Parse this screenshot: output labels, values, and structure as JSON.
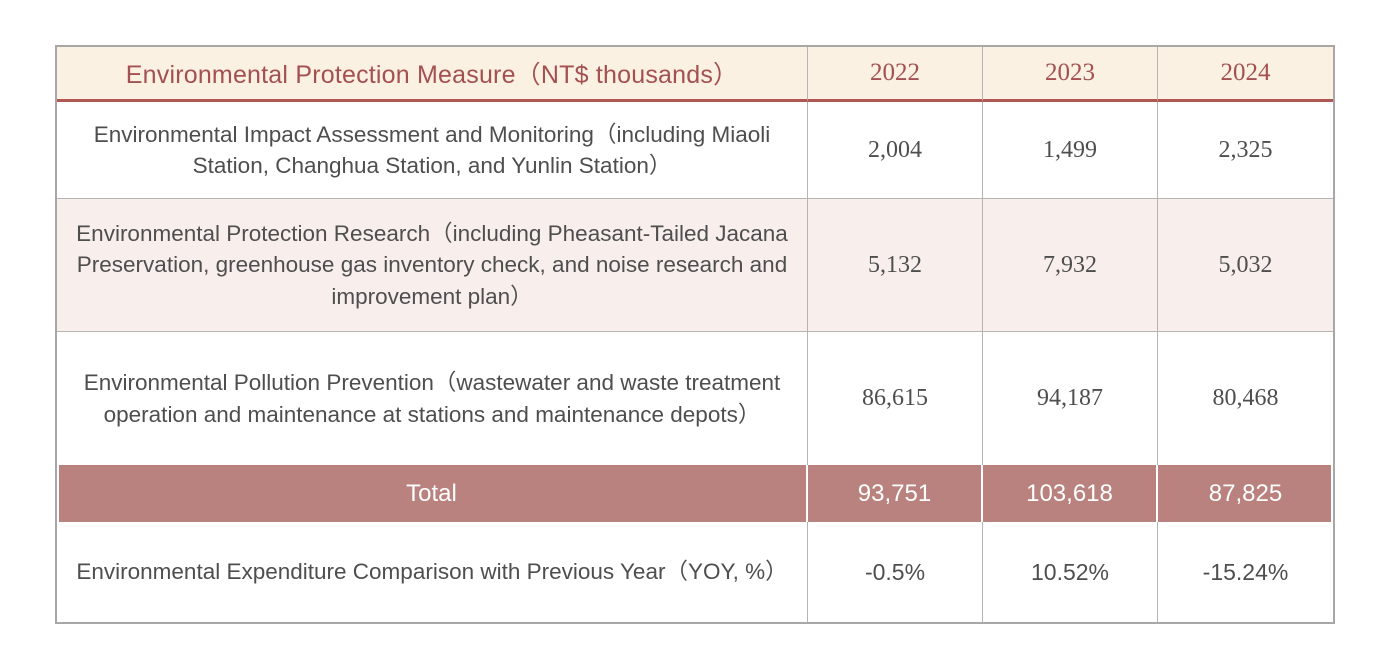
{
  "colors": {
    "header_bg": "#fbf1e2",
    "header_text": "#a35050",
    "header_underline": "#b25653",
    "row_alt_bg": "#f8efec",
    "total_bg": "#b9827e",
    "total_text": "#ffffff",
    "body_text": "#4e4e4e",
    "border_outer": "#a9a7a5",
    "border_inner": "#b7b5b3"
  },
  "table": {
    "header": {
      "measure_label": "Environmental Protection Measure（NT$ thousands）",
      "years": [
        "2022",
        "2023",
        "2024"
      ]
    },
    "rows": [
      {
        "label": "Environmental Impact Assessment and Monitoring（including Miaoli Station, Changhua Station, and Yunlin Station）",
        "values": [
          "2,004",
          "1,499",
          "2,325"
        ]
      },
      {
        "label": "Environmental Protection Research（including Pheasant-Tailed Jacana Preservation, greenhouse gas inventory check, and noise research and improvement plan）",
        "values": [
          "5,132",
          "7,932",
          "5,032"
        ]
      },
      {
        "label": "Environmental Pollution Prevention（wastewater and waste treatment operation and maintenance at stations and maintenance depots）",
        "values": [
          "86,615",
          "94,187",
          "80,468"
        ]
      }
    ],
    "total_row": {
      "label": "Total",
      "values": [
        "93,751",
        "103,618",
        "87,825"
      ]
    },
    "yoy_row": {
      "label": "Environmental Expenditure Comparison with Previous Year（YOY, %）",
      "values": [
        "-0.5%",
        "10.52%",
        "-15.24%"
      ]
    }
  },
  "chart_data": {
    "type": "table",
    "title": "Environmental Protection Measure（NT$ thousands）",
    "columns": [
      "Environmental Protection Measure（NT$ thousands）",
      "2022",
      "2023",
      "2024"
    ],
    "rows": [
      [
        "Environmental Impact Assessment and Monitoring（including Miaoli Station, Changhua Station, and Yunlin Station）",
        2004,
        1499,
        2325
      ],
      [
        "Environmental Protection Research（including Pheasant-Tailed Jacana Preservation, greenhouse gas inventory check, and noise research and improvement plan）",
        5132,
        7932,
        5032
      ],
      [
        "Environmental Pollution Prevention（wastewater and waste treatment operation and maintenance at stations and maintenance depots）",
        86615,
        94187,
        80468
      ],
      [
        "Total",
        93751,
        103618,
        87825
      ],
      [
        "Environmental Expenditure Comparison with Previous Year（YOY, %）",
        "-0.5%",
        "10.52%",
        "-15.24%"
      ]
    ]
  }
}
